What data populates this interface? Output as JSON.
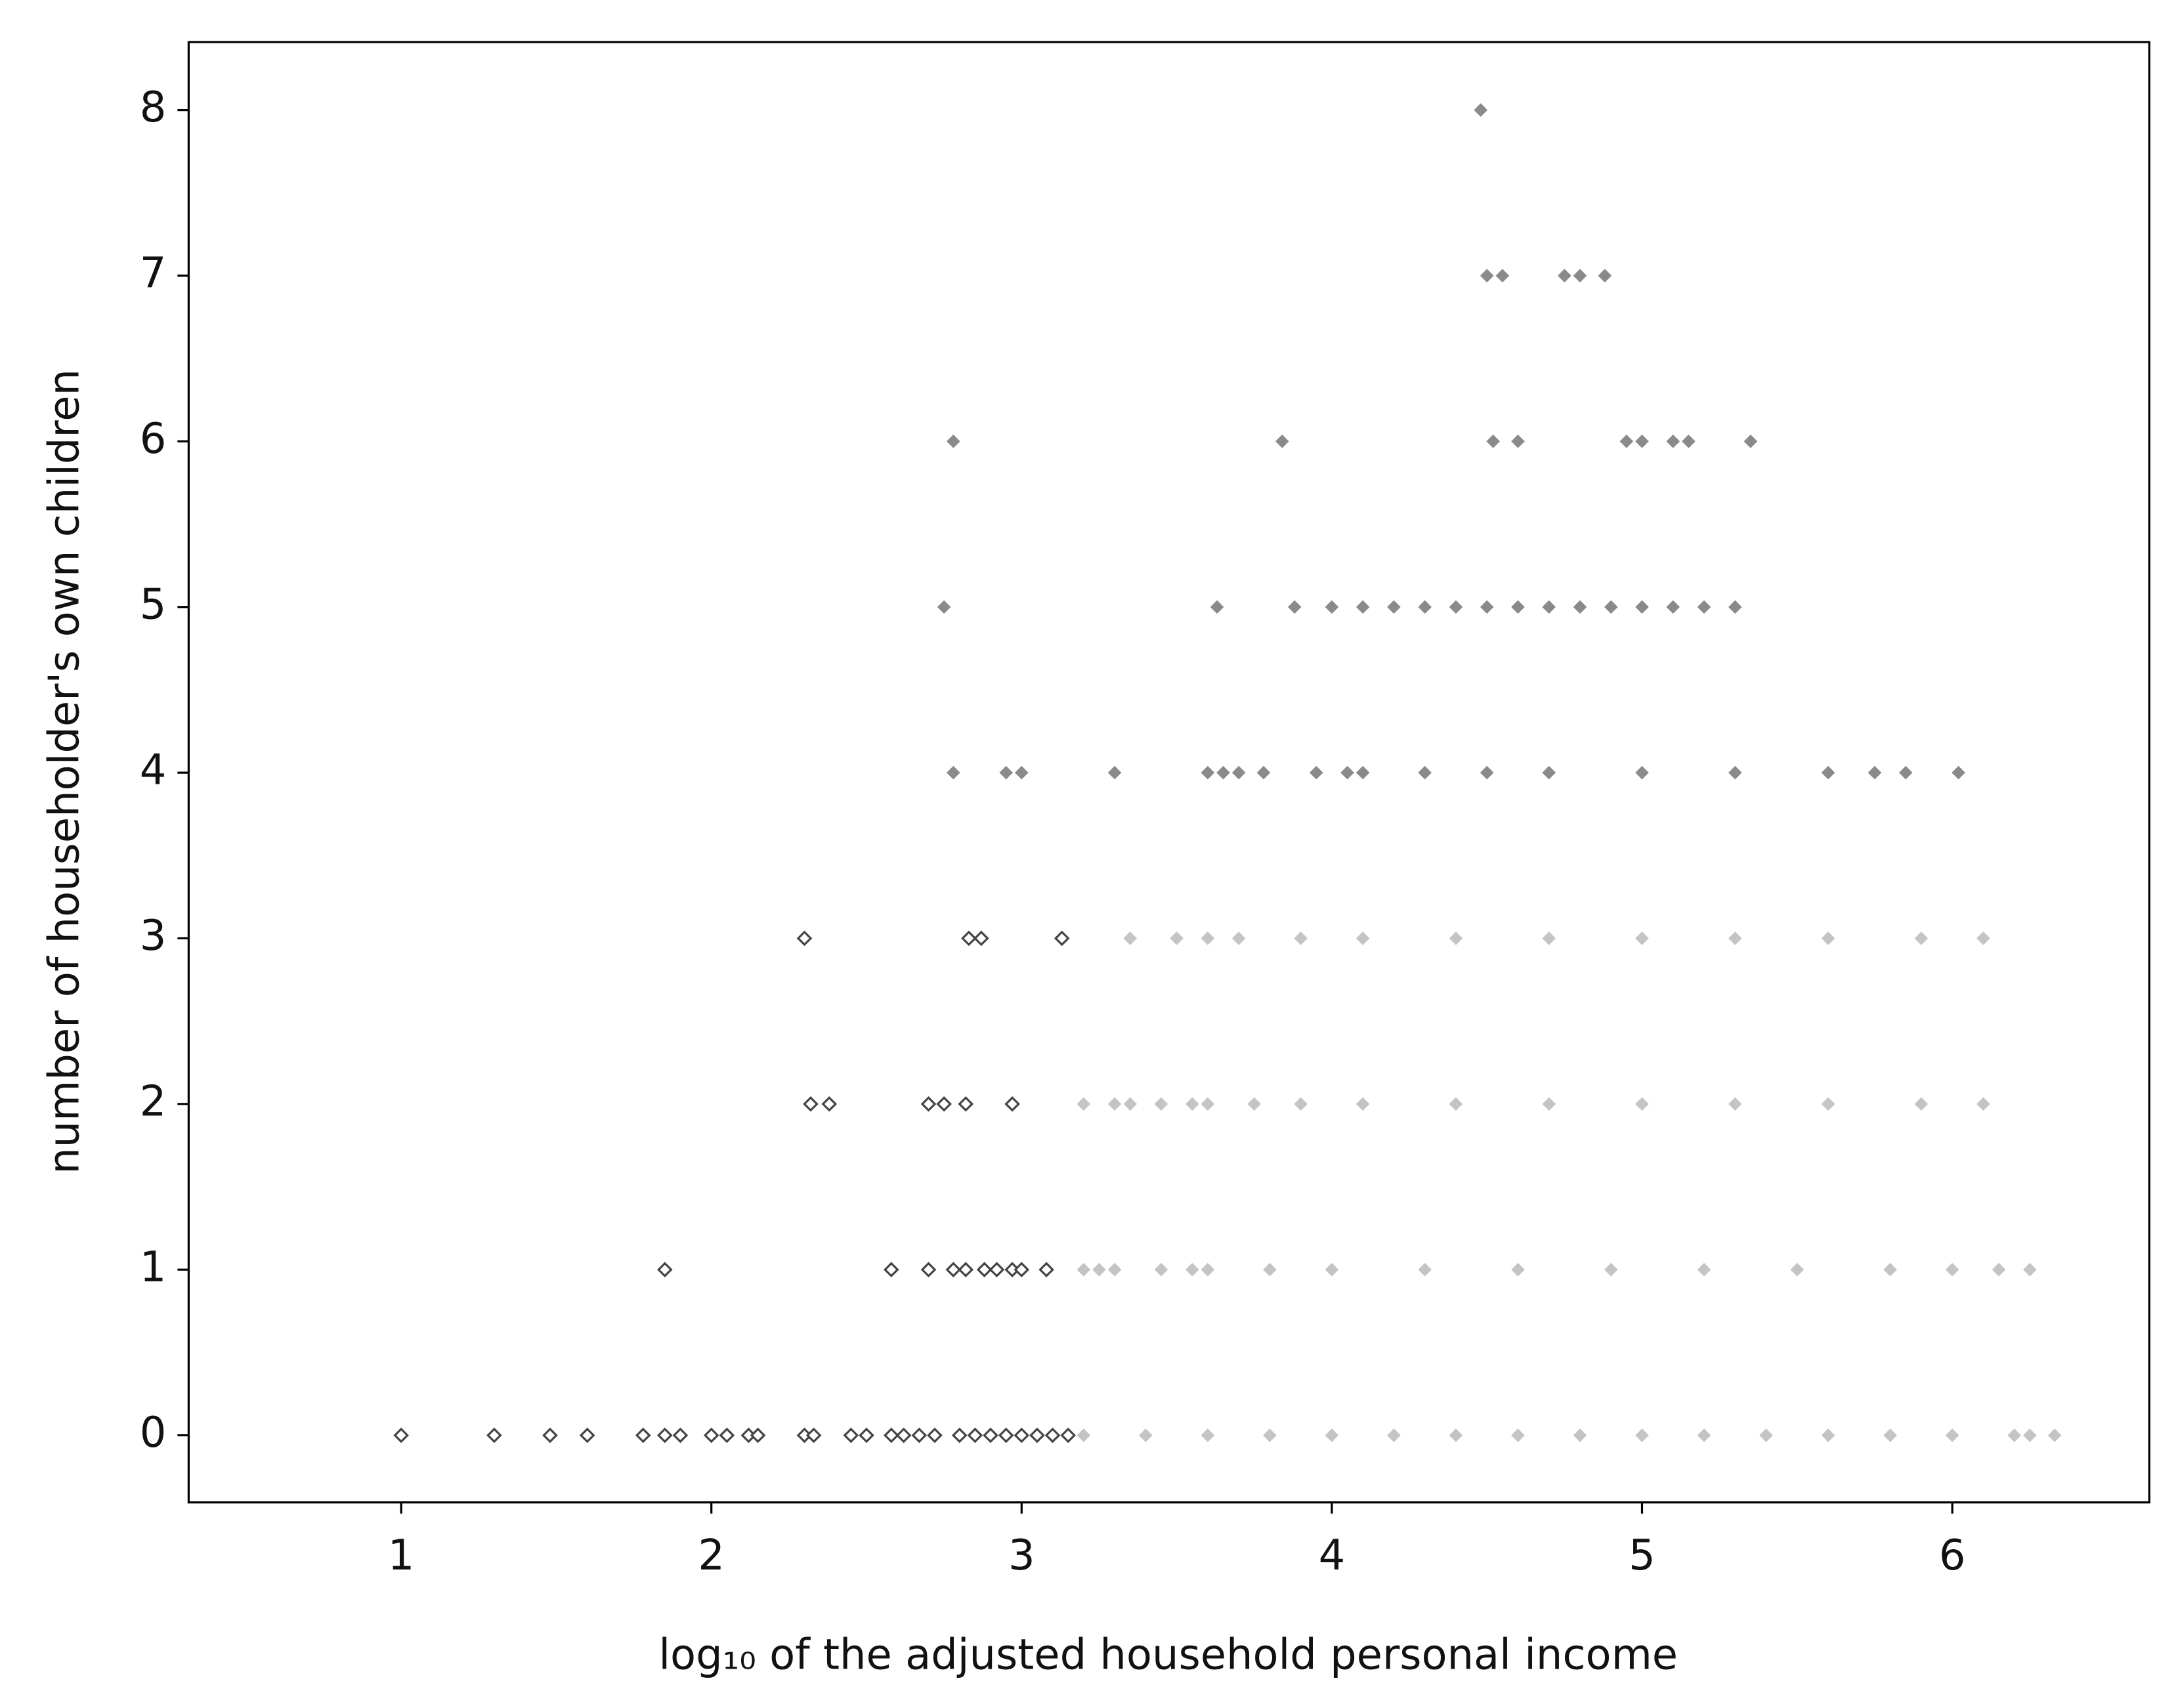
{
  "chart_data": {
    "type": "scatter",
    "x_label": "log₁₀ of the adjusted household personal income",
    "y_label": "number of householder's own children",
    "xlim": [
      0.315,
      6.635
    ],
    "ylim": [
      -0.405,
      8.41
    ],
    "xticks": [
      1,
      2,
      3,
      4,
      5,
      6
    ],
    "yticks": [
      0,
      1,
      2,
      3,
      4,
      5,
      6,
      7,
      8
    ],
    "series": [
      {
        "color": "#444444",
        "hollow": true,
        "x": [
          1.0,
          1.3,
          1.48,
          1.6,
          1.78,
          1.85,
          1.9,
          2.0,
          2.05,
          2.12,
          2.15,
          2.3,
          2.33,
          2.45,
          2.5,
          2.58,
          2.62,
          2.67,
          2.72,
          2.8,
          2.85,
          2.9,
          2.95,
          3.0,
          3.05,
          3.1,
          3.15,
          1.85,
          2.58,
          2.7,
          2.78,
          2.82,
          2.88,
          2.92,
          2.97,
          3.0,
          3.08,
          2.32,
          2.38,
          2.7,
          2.75,
          2.82,
          2.97,
          2.3,
          2.83,
          2.87,
          3.13
        ],
        "values": [
          0,
          0,
          0,
          0,
          0,
          0,
          0,
          0,
          0,
          0,
          0,
          0,
          0,
          0,
          0,
          0,
          0,
          0,
          0,
          0,
          0,
          0,
          0,
          0,
          0,
          0,
          0,
          1,
          1,
          1,
          1,
          1,
          1,
          1,
          1,
          1,
          1,
          2,
          2,
          2,
          2,
          2,
          2,
          3,
          3,
          3,
          3
        ]
      },
      {
        "color": "#c4c4c4",
        "hollow": false,
        "x": [
          3.2,
          3.4,
          3.6,
          3.8,
          4.0,
          4.2,
          4.4,
          4.6,
          4.8,
          5.0,
          5.2,
          5.4,
          5.6,
          5.8,
          6.0,
          6.2,
          6.25,
          6.33,
          3.2,
          3.25,
          3.3,
          3.45,
          3.55,
          3.6,
          3.8,
          4.0,
          4.3,
          4.6,
          4.9,
          5.2,
          5.5,
          5.8,
          6.0,
          6.15,
          6.25,
          3.2,
          3.3,
          3.35,
          3.45,
          3.55,
          3.6,
          3.75,
          3.9,
          4.1,
          4.4,
          4.7,
          5.0,
          5.3,
          5.6,
          5.9,
          6.1,
          3.35,
          3.5,
          3.6,
          3.7,
          3.9,
          4.1,
          4.4,
          4.7,
          5.0,
          5.3,
          5.6,
          5.9,
          6.1
        ],
        "values": [
          0,
          0,
          0,
          0,
          0,
          0,
          0,
          0,
          0,
          0,
          0,
          0,
          0,
          0,
          0,
          0,
          0,
          0,
          1,
          1,
          1,
          1,
          1,
          1,
          1,
          1,
          1,
          1,
          1,
          1,
          1,
          1,
          1,
          1,
          1,
          2,
          2,
          2,
          2,
          2,
          2,
          2,
          2,
          2,
          2,
          2,
          2,
          2,
          2,
          2,
          2,
          3,
          3,
          3,
          3,
          3,
          3,
          3,
          3,
          3,
          3,
          3,
          3,
          3
        ]
      },
      {
        "color": "#8a8a8a",
        "hollow": false,
        "x": [
          2.78,
          2.95,
          3.0,
          3.3,
          3.6,
          3.65,
          3.7,
          3.78,
          3.95,
          4.05,
          4.1,
          4.3,
          4.5,
          4.7,
          5.0,
          5.3,
          5.6,
          5.75,
          5.85,
          6.02,
          2.75,
          3.63,
          3.88,
          4.0,
          4.1,
          4.2,
          4.3,
          4.4,
          4.5,
          4.6,
          4.7,
          4.8,
          4.9,
          5.0,
          5.1,
          5.2,
          5.3,
          2.78,
          3.84,
          4.52,
          4.6,
          4.95,
          5.0,
          5.1,
          5.15,
          5.35,
          4.5,
          4.55,
          4.75,
          4.8,
          4.88,
          4.48
        ],
        "values": [
          4,
          4,
          4,
          4,
          4,
          4,
          4,
          4,
          4,
          4,
          4,
          4,
          4,
          4,
          4,
          4,
          4,
          4,
          4,
          4,
          5,
          5,
          5,
          5,
          5,
          5,
          5,
          5,
          5,
          5,
          5,
          5,
          5,
          5,
          5,
          5,
          5,
          6,
          6,
          6,
          6,
          6,
          6,
          6,
          6,
          6,
          7,
          7,
          7,
          7,
          7,
          8
        ]
      }
    ]
  }
}
